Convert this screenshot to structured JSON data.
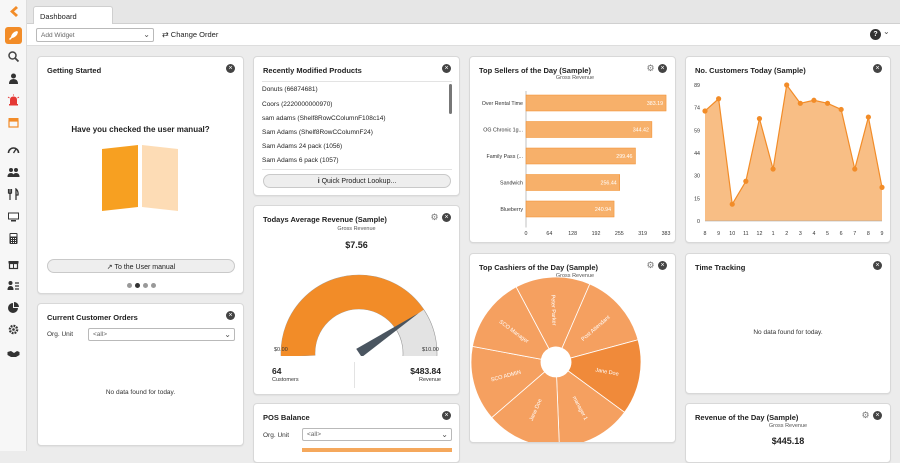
{
  "app": {
    "tab": "Dashboard"
  },
  "toolbar": {
    "add_widget_placeholder": "Add Widget",
    "change_order": "Change Order",
    "help": "?"
  },
  "sidebar": {
    "icons": [
      "logo-icon",
      "rocket-icon",
      "search-icon",
      "person-icon",
      "alarm-icon",
      "store-icon",
      "speedometer-icon",
      "people-icon",
      "utensils-icon",
      "monitor-icon",
      "calculator-icon",
      "gift-icon",
      "user-list-icon",
      "pie-icon",
      "gear-icon",
      "handshake-icon"
    ]
  },
  "getting_started": {
    "title": "Getting Started",
    "question": "Have you checked the user manual?",
    "button": "To the User manual"
  },
  "current_orders": {
    "title": "Current Customer Orders",
    "org_label": "Org. Unit",
    "org_value": "<all>",
    "empty": "No data found for today."
  },
  "recent_products": {
    "title": "Recently Modified Products",
    "items": [
      "Donuts (66874681)",
      "Coors (2220000000970)",
      "sam adams (Shelf8RowCColumnF108c14)",
      "Sam Adams (Shelf8RowCColumnF24)",
      "Sam Adams 24 pack (1056)",
      "Sam Adams 6 pack (1057)"
    ],
    "lookup": "Quick Product Lookup..."
  },
  "avg_revenue": {
    "title": "Todays Average Revenue (Sample)",
    "sub": "Gross Revenue",
    "value": "$7.56",
    "min": "$0.00",
    "max": "$10.00",
    "gauge_fraction": 0.756,
    "customers_value": "64",
    "customers_label": "Customers",
    "revenue_value": "$483.84",
    "revenue_label": "Revenue"
  },
  "pos_balance": {
    "title": "POS Balance",
    "org_label": "Org. Unit",
    "org_value": "<all>"
  },
  "top_sellers": {
    "title": "Top Sellers of the Day (Sample)"
  },
  "top_cashiers": {
    "title": "Top Cashiers of the Day (Sample)"
  },
  "customers_today": {
    "title": "No. Customers Today (Sample)"
  },
  "time_tracking": {
    "title": "Time Tracking",
    "empty": "No data found for today."
  },
  "revenue_day": {
    "title": "Revenue of the Day (Sample)",
    "sub": "Gross Revenue",
    "value": "$445.18"
  },
  "colors": {
    "accent": "#f28c28",
    "accent_light": "#f7b06a",
    "fill": "#f5a85c",
    "gauge_grey": "#e3e3e3"
  },
  "chart_data": [
    {
      "type": "bar",
      "orientation": "horizontal",
      "subtitle": "Gross Revenue",
      "categories": [
        "Over Rental Time",
        "OG Chronic 1g...",
        "Family Pass (...",
        "Sandwich",
        "Blueberry"
      ],
      "values": [
        383.19,
        344.42,
        299.46,
        256.44,
        240.94
      ],
      "value_labels": [
        "383.19",
        "344.42",
        "299.46",
        "256.44",
        "240.94"
      ],
      "xticks": [
        "0",
        "64",
        "128",
        "192",
        "255",
        "319",
        "383"
      ],
      "xlim": [
        0,
        383
      ]
    },
    {
      "type": "pie",
      "subtitle": "Gross Revenue",
      "labels": [
        "Peter Parker",
        "Post Attendant",
        "Jane Doe",
        "manager 1",
        "Jane Doe",
        "SCO ADMIN",
        "SCO Manager"
      ],
      "donut": true
    },
    {
      "type": "area",
      "categories": [
        "8",
        "9",
        "10",
        "11",
        "12",
        "1",
        "2",
        "3",
        "4",
        "5",
        "6",
        "7",
        "8",
        "9"
      ],
      "values": [
        72,
        80,
        11,
        26,
        67,
        34,
        89,
        77,
        79,
        77,
        73,
        34,
        68,
        22
      ],
      "yticks": [
        "0",
        "15",
        "30",
        "44",
        "59",
        "74",
        "89"
      ],
      "ylim": [
        0,
        89
      ]
    }
  ]
}
